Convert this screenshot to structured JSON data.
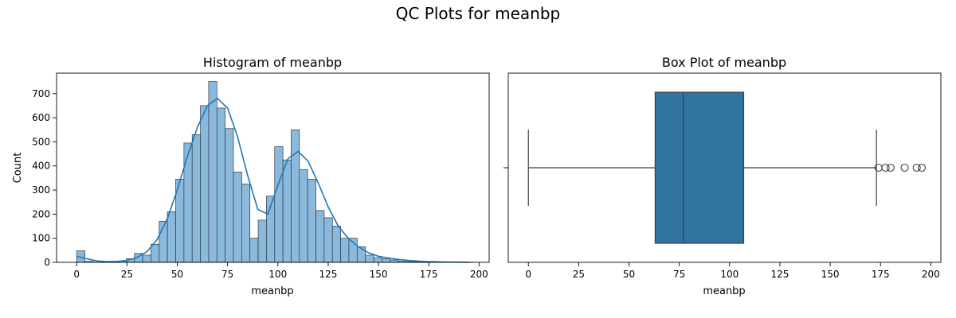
{
  "figure": {
    "title": "QC Plots for meanbp"
  },
  "chart_data": [
    {
      "type": "histogram",
      "title": "Histogram of meanbp",
      "xlabel": "meanbp",
      "ylabel": "Count",
      "xlim": [
        -10,
        205
      ],
      "ylim": [
        0,
        785
      ],
      "xticks": [
        0,
        25,
        50,
        75,
        100,
        125,
        150,
        175,
        200
      ],
      "yticks": [
        0,
        100,
        200,
        300,
        400,
        500,
        600,
        700
      ],
      "bin_width": 4.1,
      "bin_starts": [
        0,
        4.1,
        8.2,
        12.3,
        16.4,
        20.5,
        24.6,
        28.7,
        32.8,
        36.9,
        41,
        45.1,
        49.2,
        53.3,
        57.4,
        61.5,
        65.6,
        69.7,
        73.8,
        77.9,
        82,
        86.1,
        90.2,
        94.3,
        98.4,
        102.5,
        106.6,
        110.7,
        114.8,
        118.9,
        123,
        127.1,
        131.2,
        135.3,
        139.4,
        143.5,
        147.6,
        151.7,
        155.8,
        159.9,
        164,
        168.1,
        172.2,
        176.3,
        180.4,
        184.5,
        188.6,
        192.7
      ],
      "counts": [
        48,
        4,
        1,
        1,
        2,
        5,
        15,
        37,
        30,
        75,
        170,
        210,
        345,
        495,
        530,
        650,
        750,
        640,
        555,
        375,
        325,
        100,
        175,
        275,
        480,
        425,
        550,
        385,
        345,
        215,
        185,
        150,
        100,
        100,
        65,
        30,
        20,
        15,
        10,
        5,
        3,
        2,
        1,
        1,
        1,
        0,
        1,
        1
      ],
      "kde": {
        "x": [
          0,
          5,
          10,
          15,
          20,
          25,
          30,
          35,
          40,
          45,
          50,
          55,
          60,
          65,
          70,
          75,
          80,
          85,
          90,
          95,
          100,
          105,
          110,
          115,
          120,
          125,
          130,
          135,
          140,
          145,
          150,
          155,
          160,
          165,
          170,
          175,
          180,
          185,
          190,
          195
        ],
        "y": [
          25,
          15,
          6,
          3,
          4,
          8,
          20,
          45,
          95,
          180,
          300,
          440,
          560,
          650,
          680,
          640,
          520,
          360,
          220,
          200,
          320,
          430,
          460,
          420,
          330,
          230,
          150,
          100,
          65,
          40,
          25,
          18,
          12,
          8,
          5,
          3,
          2,
          1,
          1,
          0
        ]
      },
      "colors": {
        "bar_fill": "#8bb9dc",
        "bar_edge": "#2f3b45",
        "kde": "#1f77b4"
      }
    },
    {
      "type": "boxplot",
      "title": "Box Plot of meanbp",
      "xlabel": "meanbp",
      "xlim": [
        -10,
        205
      ],
      "xticks": [
        0,
        25,
        50,
        75,
        100,
        125,
        150,
        175,
        200
      ],
      "whisker_low": 0,
      "q1": 63,
      "median": 77,
      "q3": 107,
      "whisker_high": 173,
      "outliers": [
        174,
        177.5,
        180,
        187,
        193,
        195.5
      ],
      "colors": {
        "box_fill": "#3274a1",
        "line": "#3f3f3f"
      }
    }
  ]
}
